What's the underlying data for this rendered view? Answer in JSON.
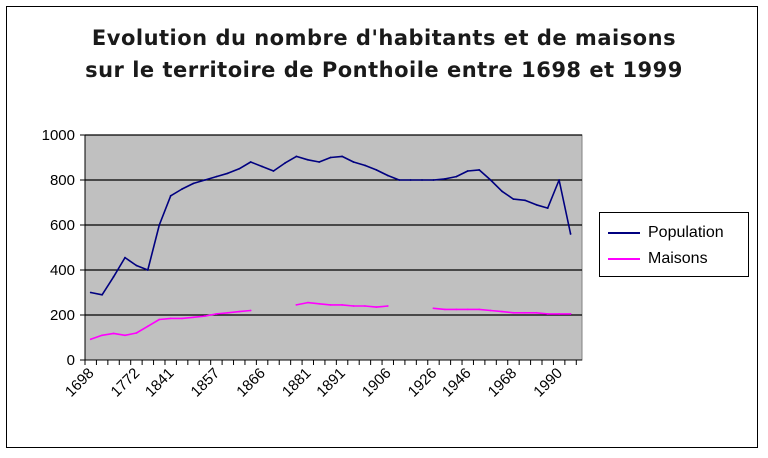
{
  "chart_data": {
    "type": "line",
    "title": "Evolution du nombre d'habitants et de maisons",
    "subtitle": "sur le territoire de Ponthoile entre 1698 et 1999",
    "xlabel": "",
    "ylabel": "",
    "ylim": [
      0,
      1000
    ],
    "yticks": [
      "0",
      "200",
      "400",
      "600",
      "800",
      "1000"
    ],
    "xtick_labels": [
      "1698",
      "1772",
      "1841",
      "1857",
      "1866",
      "1881",
      "1891",
      "1906",
      "1926",
      "1946",
      "1968",
      "1990"
    ],
    "n_points": 43,
    "grid": true,
    "legend": "right",
    "series": [
      {
        "name": "Population",
        "color": "#000080",
        "values": [
          300,
          290,
          370,
          455,
          420,
          400,
          600,
          730,
          760,
          785,
          800,
          815,
          830,
          850,
          880,
          860,
          840,
          875,
          905,
          890,
          880,
          900,
          905,
          880,
          865,
          845,
          820,
          800,
          800,
          800,
          800,
          805,
          815,
          840,
          845,
          800,
          750,
          715,
          710,
          690,
          675,
          800,
          560
        ]
      },
      {
        "name": "Maisons",
        "color": "#ff00ff",
        "values": [
          92,
          110,
          118,
          110,
          120,
          150,
          180,
          185,
          185,
          190,
          195,
          205,
          210,
          215,
          220,
          null,
          null,
          null,
          245,
          255,
          250,
          245,
          245,
          240,
          240,
          235,
          240,
          null,
          null,
          null,
          230,
          225,
          225,
          225,
          225,
          220,
          215,
          210,
          210,
          210,
          205,
          205,
          205
        ]
      }
    ]
  },
  "legend": {
    "population_label": "Population",
    "maisons_label": "Maisons"
  }
}
